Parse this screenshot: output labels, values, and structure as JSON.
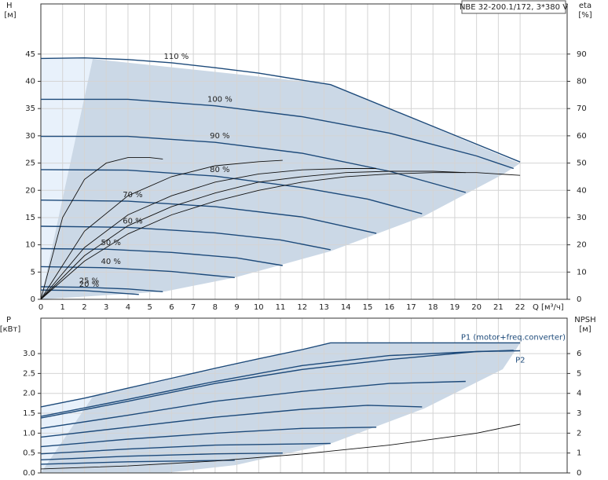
{
  "chart_data": [
    {
      "type": "line",
      "title": "NBE 32-200.1/172, 3*380 V",
      "xlabel": "Q [м³/ч]",
      "ylabel": [
        "H",
        "[м]"
      ],
      "y2label": [
        "eta",
        "[%]"
      ],
      "xlim": [
        0,
        24.16
      ],
      "xticks": [
        0,
        1,
        2,
        3,
        4,
        5,
        6,
        7,
        8,
        9,
        10,
        11,
        12,
        13,
        14,
        15,
        16,
        17,
        18,
        19,
        20,
        21,
        22
      ],
      "ylim": [
        0,
        54.2
      ],
      "yticks": [
        0,
        5,
        10,
        15,
        20,
        25,
        30,
        35,
        40,
        45
      ],
      "y2lim": [
        0,
        108.4
      ],
      "y2ticks": [
        0,
        10,
        20,
        30,
        40,
        50,
        60,
        70,
        80,
        90
      ],
      "grid": true,
      "series": [
        {
          "name": "110 %",
          "color": "#1d4a7a",
          "x": [
            0,
            2,
            4,
            6,
            8,
            10,
            12,
            13.3,
            22
          ],
          "values": [
            44.2,
            44.3,
            44.0,
            43.4,
            42.5,
            41.5,
            40.2,
            39.4,
            25.2
          ]
        },
        {
          "name": "100 %",
          "color": "#1d4a7a",
          "x": [
            0,
            4,
            8,
            12,
            16,
            20,
            21.7
          ],
          "values": [
            36.7,
            36.7,
            35.5,
            33.5,
            30.5,
            26.3,
            24.0
          ]
        },
        {
          "name": "90 %",
          "color": "#1d4a7a",
          "x": [
            0,
            4,
            8,
            12,
            16,
            19.5
          ],
          "values": [
            29.9,
            29.9,
            28.8,
            26.8,
            23.5,
            19.6
          ]
        },
        {
          "name": "80 %",
          "color": "#1d4a7a",
          "x": [
            0,
            4,
            8,
            12,
            15,
            17.5
          ],
          "values": [
            23.8,
            23.7,
            22.6,
            20.5,
            18.4,
            15.7
          ]
        },
        {
          "name": "70 %",
          "color": "#1d4a7a",
          "x": [
            0,
            4,
            8,
            12,
            15.4
          ],
          "values": [
            18.2,
            18.0,
            17.0,
            15.1,
            12.1
          ]
        },
        {
          "name": "60 %",
          "color": "#1d4a7a",
          "x": [
            0,
            4,
            8,
            11,
            13.3
          ],
          "values": [
            13.4,
            13.2,
            12.2,
            10.9,
            9.1
          ]
        },
        {
          "name": "50 %",
          "color": "#1d4a7a",
          "x": [
            0,
            3,
            6,
            9,
            11.1
          ],
          "values": [
            9.3,
            9.2,
            8.6,
            7.6,
            6.2
          ]
        },
        {
          "name": "40 %",
          "color": "#1d4a7a",
          "x": [
            0,
            3,
            6,
            8.9
          ],
          "values": [
            6.0,
            5.8,
            5.1,
            4.0
          ]
        },
        {
          "name": "25 %",
          "color": "#1d4a7a",
          "x": [
            0,
            2,
            4,
            5.6
          ],
          "values": [
            2.3,
            2.2,
            1.9,
            1.4
          ]
        },
        {
          "name": "20 %",
          "color": "#1d4a7a",
          "x": [
            0,
            2,
            4.5
          ],
          "values": [
            1.7,
            1.6,
            0.9
          ]
        },
        {
          "axis": "y2",
          "color": "#111",
          "x": [
            0,
            2,
            4,
            6,
            8,
            10,
            12,
            14,
            16,
            18,
            20,
            22
          ],
          "values": [
            0,
            14,
            24,
            31,
            36,
            40,
            43,
            45,
            46,
            46.5,
            46.5,
            45.5
          ]
        },
        {
          "axis": "y2",
          "color": "#111",
          "x": [
            0,
            2,
            4,
            6,
            8,
            10,
            12,
            14,
            16,
            18,
            19.5
          ],
          "values": [
            0,
            16,
            27,
            34,
            39,
            43,
            45,
            46.5,
            47,
            47,
            46.5
          ]
        },
        {
          "axis": "y2",
          "color": "#111",
          "x": [
            0,
            2,
            4,
            6,
            8,
            10,
            12,
            14,
            15.4
          ],
          "values": [
            0,
            19,
            31,
            38,
            43,
            46,
            47.5,
            48,
            48
          ]
        },
        {
          "axis": "y2",
          "color": "#111",
          "x": [
            0,
            2,
            4,
            6,
            8,
            10,
            11.1
          ],
          "values": [
            0,
            25,
            38,
            45,
            49,
            50.5,
            51
          ]
        },
        {
          "axis": "y2",
          "color": "#111",
          "x": [
            0,
            1,
            2,
            3,
            4,
            5,
            5.6
          ],
          "values": [
            0,
            30,
            44,
            50,
            52,
            52,
            51.5
          ]
        }
      ]
    },
    {
      "type": "line",
      "ylabel": [
        "P",
        "[кВт]"
      ],
      "y2label": [
        "NPSH",
        "[м]"
      ],
      "xlim": [
        0,
        24.16
      ],
      "xticks": [
        0,
        1,
        2,
        3,
        4,
        5,
        6,
        7,
        8,
        9,
        10,
        11,
        12,
        13,
        14,
        15,
        16,
        17,
        18,
        19,
        20,
        21,
        22
      ],
      "ylim": [
        0,
        3.89
      ],
      "yticks": [
        {
          "value": 0,
          "label": "0.0"
        },
        0.5,
        {
          "value": 1,
          "label": "1.0"
        },
        1.5,
        {
          "value": 2,
          "label": "2.0"
        },
        2.5,
        {
          "value": 3,
          "label": "3.0"
        }
      ],
      "y2lim": [
        0,
        7.78
      ],
      "y2ticks": [
        0,
        1,
        2,
        3,
        4,
        5,
        6
      ],
      "grid": true,
      "series": [
        {
          "name": "P1 (motor+freq.converter)",
          "color": "#1d4a7a",
          "x": [
            0,
            2,
            4,
            6,
            8,
            10,
            12,
            13.3,
            22
          ],
          "values": [
            1.66,
            1.88,
            2.13,
            2.38,
            2.63,
            2.87,
            3.1,
            3.27,
            3.27
          ]
        },
        {
          "name": "P2",
          "color": "#1d4a7a",
          "x": [
            0,
            4,
            8,
            12,
            16,
            20,
            22
          ],
          "values": [
            1.42,
            1.85,
            2.3,
            2.7,
            2.95,
            3.05,
            3.07
          ]
        },
        {
          "color": "#1d4a7a",
          "x": [
            0,
            4,
            8,
            12,
            16,
            20,
            21.7
          ],
          "values": [
            1.38,
            1.8,
            2.25,
            2.6,
            2.85,
            3.05,
            3.08
          ]
        },
        {
          "color": "#1d4a7a",
          "x": [
            0,
            4,
            8,
            12,
            16,
            19.5
          ],
          "values": [
            1.12,
            1.45,
            1.8,
            2.05,
            2.25,
            2.3
          ]
        },
        {
          "color": "#1d4a7a",
          "x": [
            0,
            4,
            8,
            12,
            15,
            17.5
          ],
          "values": [
            0.9,
            1.15,
            1.4,
            1.6,
            1.7,
            1.66
          ]
        },
        {
          "color": "#1d4a7a",
          "x": [
            0,
            4,
            8,
            12,
            15.4
          ],
          "values": [
            0.66,
            0.85,
            1.0,
            1.12,
            1.15
          ]
        },
        {
          "color": "#1d4a7a",
          "x": [
            0,
            4,
            8,
            13.3
          ],
          "values": [
            0.48,
            0.6,
            0.7,
            0.74
          ]
        },
        {
          "color": "#1d4a7a",
          "x": [
            0,
            4,
            8,
            11.1
          ],
          "values": [
            0.33,
            0.42,
            0.48,
            0.5
          ]
        },
        {
          "color": "#1d4a7a",
          "x": [
            0,
            4,
            8.9
          ],
          "values": [
            0.22,
            0.28,
            0.32
          ]
        },
        {
          "axis": "y2",
          "color": "#111",
          "x": [
            0,
            4,
            8,
            12,
            16,
            20,
            22
          ],
          "values": [
            0.2,
            0.35,
            0.6,
            0.95,
            1.4,
            2.0,
            2.45
          ]
        }
      ]
    }
  ]
}
